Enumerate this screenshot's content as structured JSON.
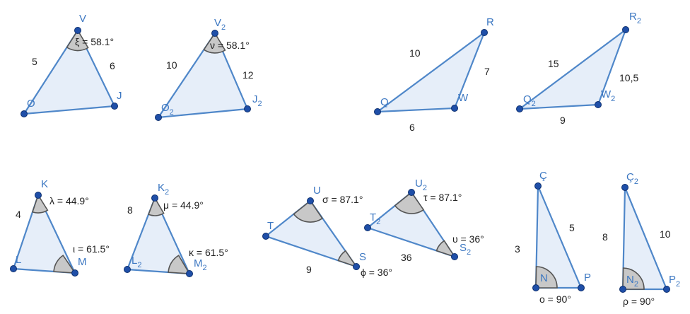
{
  "figures": {
    "t1": {
      "vertices": [
        "V",
        "O",
        "J"
      ],
      "vertex_sub": [
        "",
        "",
        ""
      ],
      "sides": [
        "5",
        "6"
      ],
      "angle": "ξ = 58.1°"
    },
    "t2": {
      "vertices": [
        "V",
        "O",
        "J"
      ],
      "vertex_sub": [
        "2",
        "2",
        "2"
      ],
      "sides": [
        "10",
        "12"
      ],
      "angle": "ν = 58.1°"
    },
    "t3": {
      "vertices": [
        "R",
        "Q",
        "W"
      ],
      "vertex_sub": [
        "",
        "",
        ""
      ],
      "sides": [
        "10",
        "7",
        "6"
      ]
    },
    "t4": {
      "vertices": [
        "R",
        "Q",
        "W"
      ],
      "vertex_sub": [
        "2",
        "2",
        "2"
      ],
      "sides": [
        "15",
        "10,5",
        "9"
      ]
    },
    "t5": {
      "vertices": [
        "K",
        "L",
        "M"
      ],
      "vertex_sub": [
        "",
        "",
        ""
      ],
      "sides": [
        "4"
      ],
      "angles": [
        "λ = 44.9°",
        "ι = 61.5°"
      ]
    },
    "t6": {
      "vertices": [
        "K",
        "L",
        "M"
      ],
      "vertex_sub": [
        "2",
        "2",
        "2"
      ],
      "sides": [
        "8"
      ],
      "angles": [
        "μ = 44.9°",
        "κ = 61.5°"
      ]
    },
    "t7": {
      "vertices": [
        "U",
        "T",
        "S"
      ],
      "vertex_sub": [
        "",
        "",
        ""
      ],
      "sides": [
        "9"
      ],
      "angles": [
        "σ = 87.1°",
        "ϕ = 36°"
      ]
    },
    "t8": {
      "vertices": [
        "U",
        "T",
        "S"
      ],
      "vertex_sub": [
        "2",
        "2",
        "2"
      ],
      "sides": [
        "36"
      ],
      "angles": [
        "τ = 87.1°",
        "υ = 36°"
      ]
    },
    "t9": {
      "vertices": [
        "Ç",
        "N",
        "P"
      ],
      "vertex_sub": [
        "",
        "",
        ""
      ],
      "sides": [
        "5",
        "3"
      ],
      "angle": "ο = 90°"
    },
    "t10": {
      "vertices": [
        "Ç",
        "N",
        "P"
      ],
      "vertex_sub": [
        "2",
        "2",
        "2"
      ],
      "sides": [
        "10",
        "8"
      ],
      "angle": "ρ = 90°"
    }
  },
  "colors": {
    "fill": "#dde8f7",
    "stroke": "#4f87c9",
    "point": "#1f4fa8",
    "label": "#3d78c2",
    "angle_fill": "#c8c8c8"
  }
}
